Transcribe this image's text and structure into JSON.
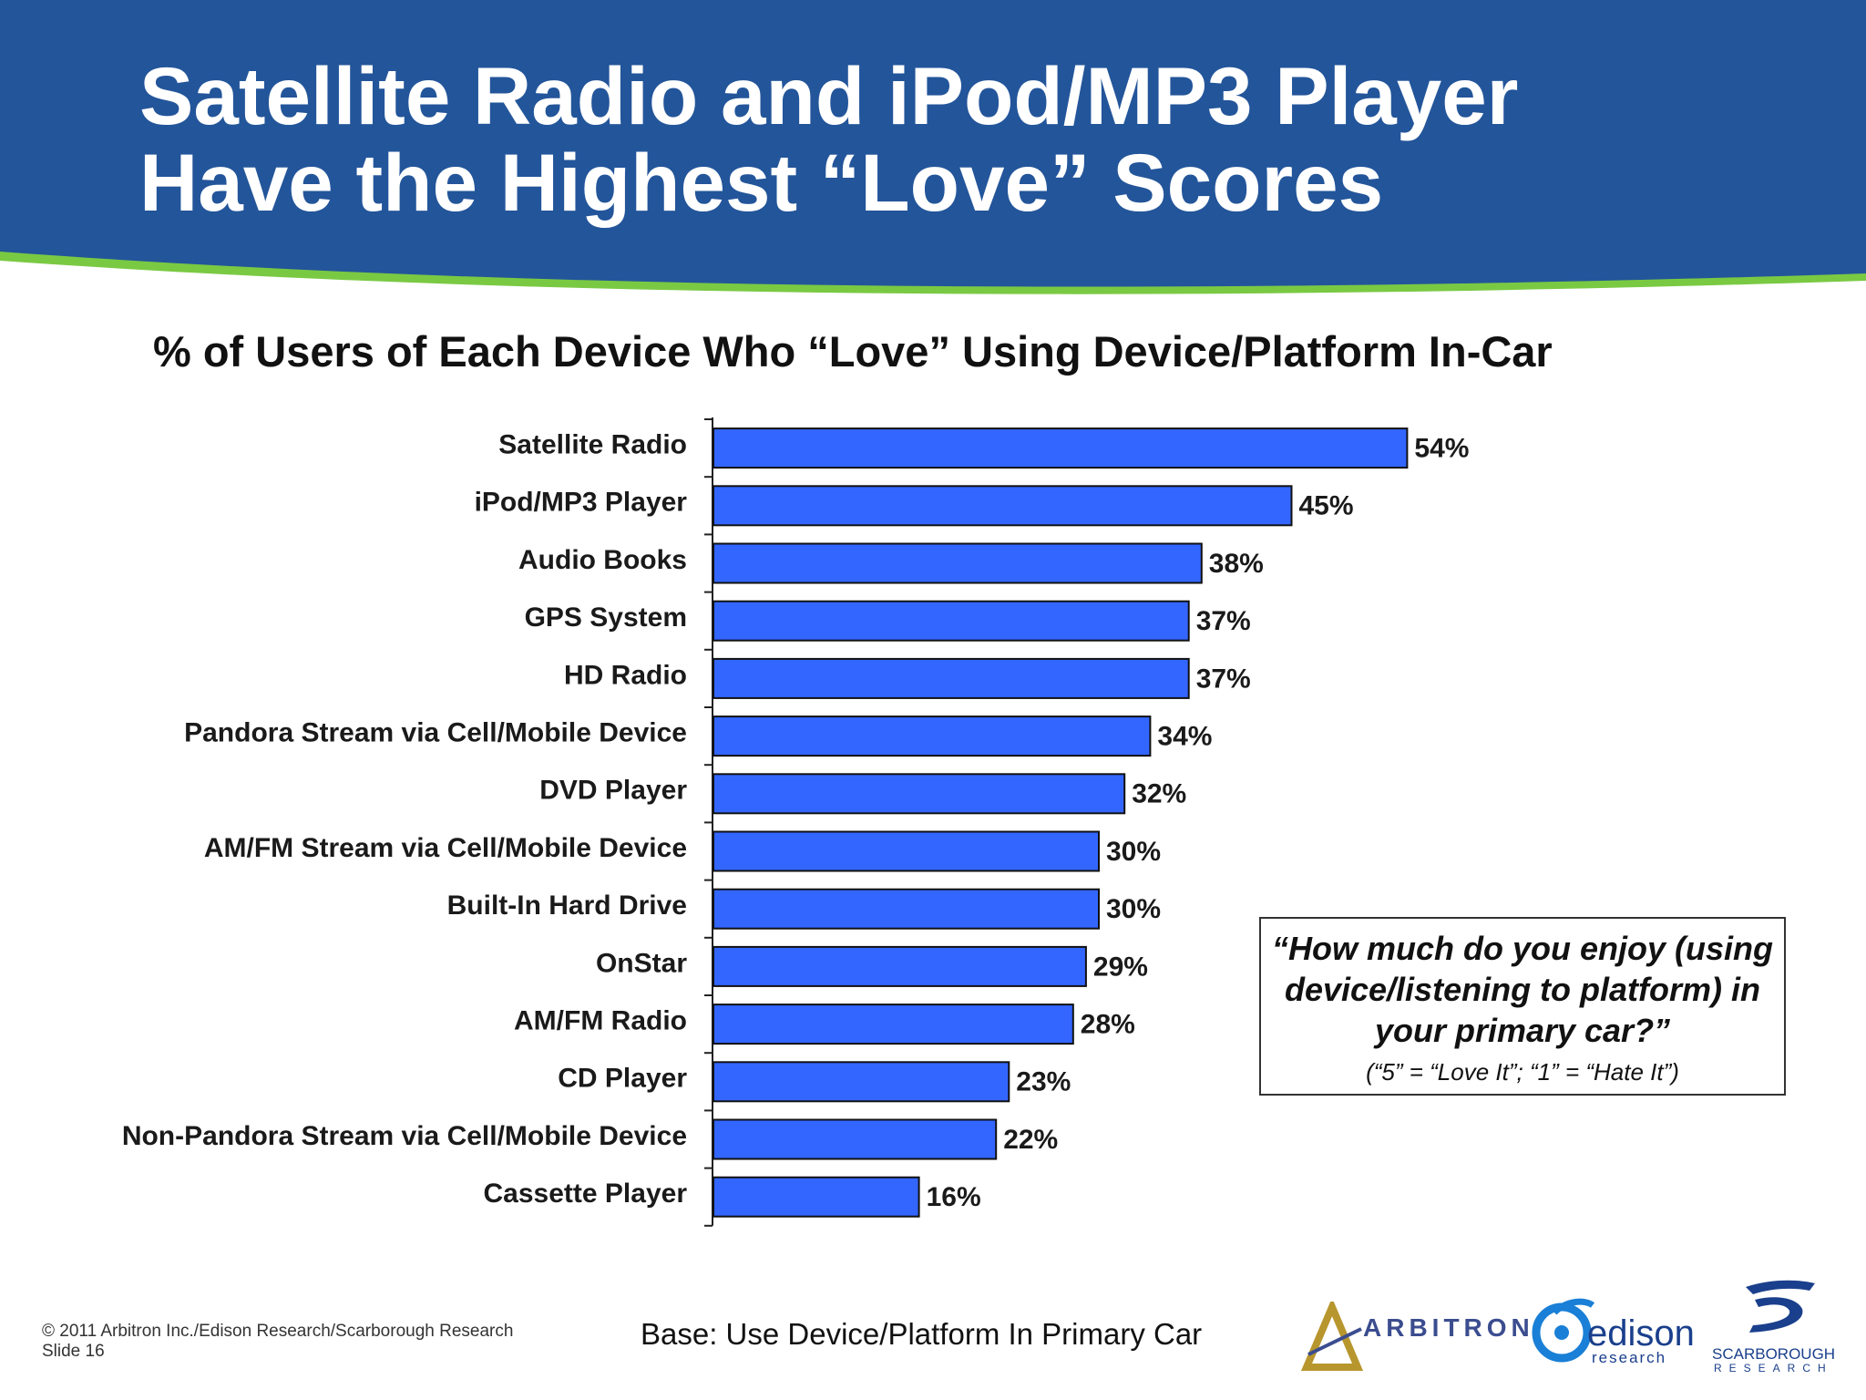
{
  "slide": {
    "title_line1": "Satellite Radio and iPod/MP3 Player",
    "title_line2": "Have the Highest “Love” Scores"
  },
  "chart_data": {
    "type": "bar",
    "orientation": "horizontal",
    "title": "% of Users of Each Device Who “Love” Using Device/Platform In-Car",
    "categories": [
      "Satellite Radio",
      "iPod/MP3 Player",
      "Audio Books",
      "GPS System",
      "HD Radio",
      "Pandora Stream via Cell/Mobile Device",
      "DVD Player",
      "AM/FM Stream via Cell/Mobile Device",
      "Built-In Hard Drive",
      "OnStar",
      "AM/FM Radio",
      "CD Player",
      "Non-Pandora Stream via Cell/Mobile Device",
      "Cassette Player"
    ],
    "values": [
      54,
      45,
      38,
      37,
      37,
      34,
      32,
      30,
      30,
      29,
      28,
      23,
      22,
      16
    ],
    "value_labels": [
      "54%",
      "45%",
      "38%",
      "37%",
      "37%",
      "34%",
      "32%",
      "30%",
      "30%",
      "29%",
      "28%",
      "23%",
      "22%",
      "16%"
    ],
    "xlim": [
      0,
      100
    ],
    "grid": false,
    "legend": "none",
    "bar_color": "#3366ff"
  },
  "question": {
    "text": "“How much do you enjoy (using device/listening to platform) in your primary car?”",
    "scale_note": "(“5” = “Love It”; “1” = “Hate It”)"
  },
  "footer": {
    "copyright": "© 2011 Arbitron Inc./Edison Research/Scarborough Research",
    "slide_number": "Slide 16",
    "base_note": "Base: Use Device/Platform In Primary Car"
  },
  "logos": {
    "arbitron": "ARBITRON",
    "edison": "edison",
    "edison_sub": "research",
    "scarborough": "SCARBOROUGH",
    "scarborough_sub": "RESEARCH"
  },
  "colors": {
    "header_blue": "#23559a",
    "accent_green": "#7ac943",
    "bar_blue": "#3366ff"
  }
}
